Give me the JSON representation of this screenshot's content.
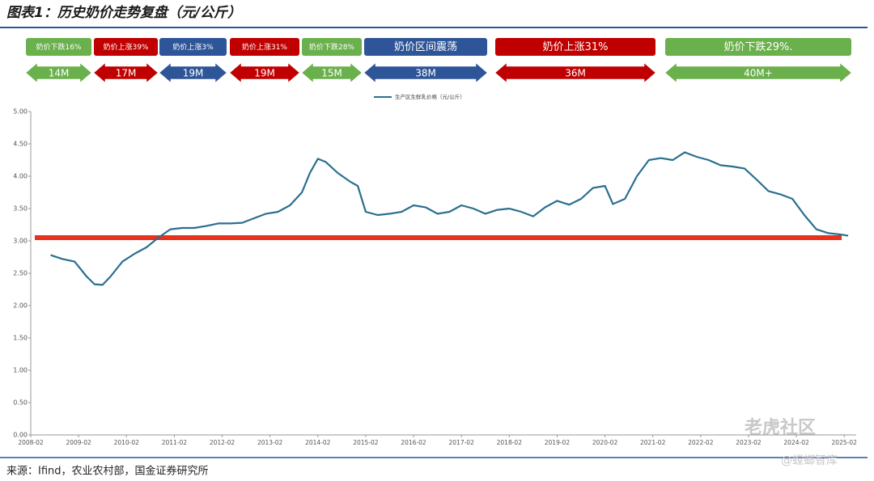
{
  "title": "图表1：历史奶价走势复盘（元/公斤）",
  "source": "来源：Ifind，农业农村部，国金证券研究所",
  "watermark": [
    "老虎社区",
    "@螳螂智库"
  ],
  "chart_data": {
    "type": "line",
    "legend": "top",
    "grid": false,
    "periods": [
      {
        "label": "奶价下跌16%",
        "duration": "14M",
        "color": "#6ab04c"
      },
      {
        "label": "奶价上涨39%",
        "duration": "17M",
        "color": "#c00000"
      },
      {
        "label": "奶价上涨3%",
        "duration": "19M",
        "color": "#2e5597"
      },
      {
        "label": "奶价上涨31%",
        "duration": "19M",
        "color": "#c00000"
      },
      {
        "label": "奶价下跌28%",
        "duration": "15M",
        "color": "#6ab04c"
      },
      {
        "label": "奶价区间震荡",
        "duration": "38M",
        "color": "#2e5597"
      },
      {
        "label": "奶价上涨31%",
        "duration": "36M",
        "color": "#c00000"
      },
      {
        "label": "奶价下跌29%.",
        "duration": "40M+",
        "color": "#6ab04c"
      }
    ],
    "hline": {
      "value": 3.05,
      "color": "#e8321e"
    },
    "x": [
      "2008-07",
      "2008-10",
      "2009-01",
      "2009-04",
      "2009-06",
      "2009-08",
      "2009-10",
      "2010-01",
      "2010-04",
      "2010-07",
      "2010-10",
      "2011-01",
      "2011-04",
      "2011-07",
      "2011-10",
      "2012-01",
      "2012-04",
      "2012-07",
      "2012-10",
      "2013-01",
      "2013-04",
      "2013-07",
      "2013-10",
      "2013-12",
      "2014-02",
      "2014-04",
      "2014-07",
      "2014-10",
      "2014-12",
      "2015-02",
      "2015-05",
      "2015-08",
      "2015-11",
      "2016-02",
      "2016-05",
      "2016-08",
      "2016-11",
      "2017-02",
      "2017-05",
      "2017-08",
      "2017-11",
      "2018-02",
      "2018-05",
      "2018-08",
      "2018-11",
      "2019-02",
      "2019-05",
      "2019-08",
      "2019-11",
      "2020-02",
      "2020-04",
      "2020-07",
      "2020-10",
      "2021-01",
      "2021-04",
      "2021-07",
      "2021-10",
      "2022-01",
      "2022-04",
      "2022-07",
      "2022-10",
      "2023-01",
      "2023-04",
      "2023-07",
      "2023-10",
      "2024-01",
      "2024-04",
      "2024-07",
      "2024-10",
      "2025-01",
      "2025-03"
    ],
    "series": [
      {
        "name": "生产区生鲜乳价格（元/公斤）",
        "color": "#2a6f8f",
        "values": [
          2.78,
          2.72,
          2.68,
          2.45,
          2.33,
          2.32,
          2.45,
          2.68,
          2.8,
          2.9,
          3.05,
          3.18,
          3.2,
          3.2,
          3.23,
          3.27,
          3.27,
          3.28,
          3.35,
          3.42,
          3.45,
          3.55,
          3.75,
          4.05,
          4.27,
          4.22,
          4.05,
          3.92,
          3.85,
          3.45,
          3.4,
          3.42,
          3.45,
          3.55,
          3.52,
          3.42,
          3.45,
          3.55,
          3.5,
          3.42,
          3.48,
          3.5,
          3.45,
          3.38,
          3.52,
          3.62,
          3.56,
          3.65,
          3.82,
          3.85,
          3.57,
          3.65,
          4.0,
          4.25,
          4.28,
          4.25,
          4.37,
          4.3,
          4.25,
          4.17,
          4.15,
          4.12,
          3.95,
          3.77,
          3.72,
          3.65,
          3.4,
          3.18,
          3.12,
          3.1,
          3.08
        ]
      }
    ],
    "xlim": [
      "2008-02",
      "2025-05"
    ],
    "xticks": [
      "2008-02",
      "2009-02",
      "2010-02",
      "2011-02",
      "2012-02",
      "2013-02",
      "2014-02",
      "2015-02",
      "2016-02",
      "2017-02",
      "2018-02",
      "2019-02",
      "2020-02",
      "2021-02",
      "2022-02",
      "2023-02",
      "2024-02",
      "2025-02"
    ],
    "ylim": [
      0,
      5
    ],
    "yticks": [
      {
        "value": 0,
        "label": "0.00"
      },
      {
        "value": 0.5,
        "label": "0.50"
      },
      {
        "value": 1,
        "label": "1.00"
      },
      {
        "value": 1.5,
        "label": "1.50"
      },
      {
        "value": 2,
        "label": "2.00"
      },
      {
        "value": 2.5,
        "label": "2.50"
      },
      {
        "value": 3,
        "label": "3.00"
      },
      {
        "value": 3.5,
        "label": "3.50"
      },
      {
        "value": 4,
        "label": "4.00"
      },
      {
        "value": 4.5,
        "label": "4.50"
      },
      {
        "value": 5,
        "label": "5.00"
      }
    ]
  }
}
